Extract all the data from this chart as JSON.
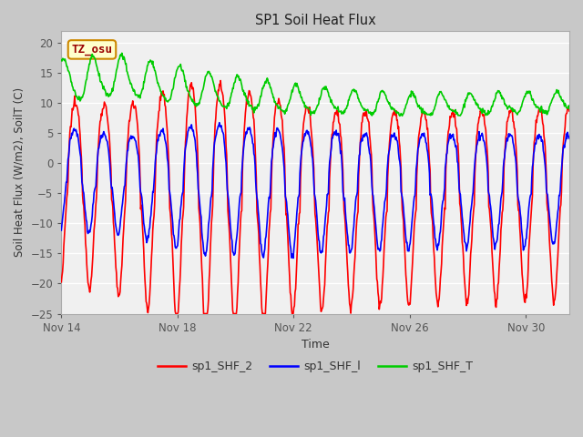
{
  "title": "SP1 Soil Heat Flux",
  "xlabel": "Time",
  "ylabel": "Soil Heat Flux (W/m2), SoilT (C)",
  "ylim": [
    -25,
    22
  ],
  "yticks": [
    -25,
    -20,
    -15,
    -10,
    -5,
    0,
    5,
    10,
    15,
    20
  ],
  "xtick_labels": [
    "Nov 14",
    "Nov 18",
    "Nov 22",
    "Nov 26",
    "Nov 30"
  ],
  "xtick_pos": [
    0,
    4,
    8,
    12,
    16
  ],
  "xlim": [
    0,
    17.5
  ],
  "fig_facecolor": "#c8c8c8",
  "ax_facecolor": "#f0f0f0",
  "grid_color": "#ffffff",
  "legend_labels": [
    "sp1_SHF_2",
    "sp1_SHF_l",
    "sp1_SHF_T"
  ],
  "legend_colors": [
    "#ff0000",
    "#0000ff",
    "#00cc00"
  ],
  "annotation_text": "TZ_osu",
  "annotation_bg": "#ffffcc",
  "annotation_border": "#cc8800",
  "annotation_text_color": "#990000",
  "line_width": 1.2,
  "n_days": 17.5,
  "n_points": 840
}
